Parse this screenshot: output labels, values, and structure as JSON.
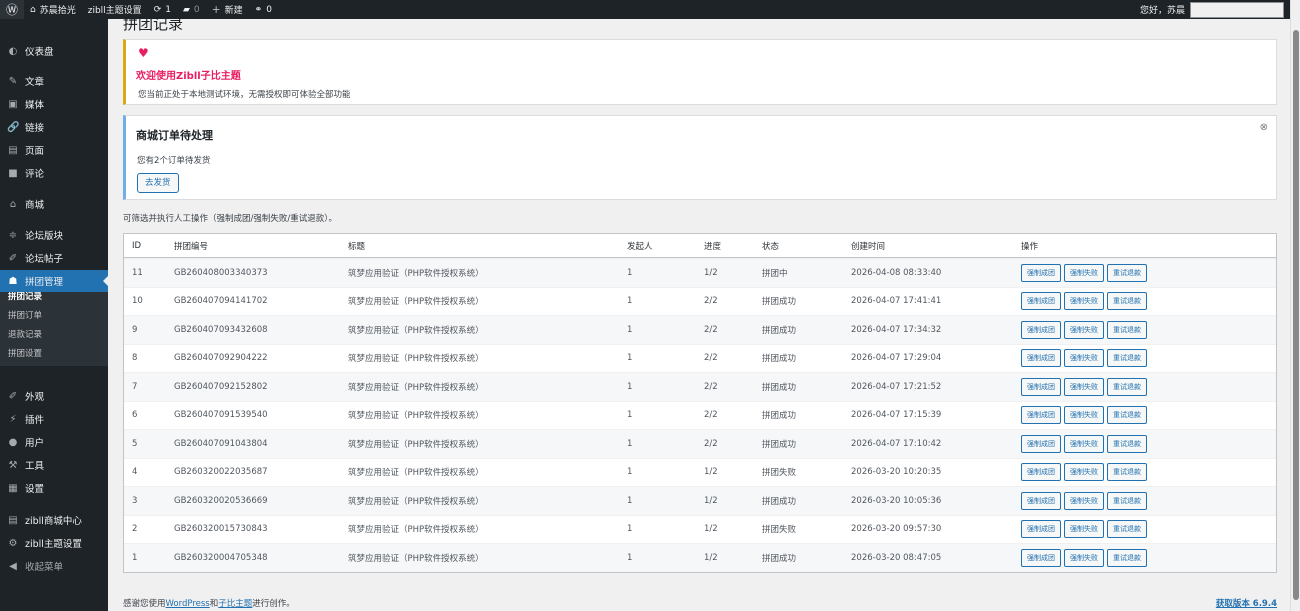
{
  "adminbar": {
    "site": "苏晨拾光",
    "theme_settings": "zibll主题设置",
    "updates": "1",
    "comments": "0",
    "new": "新建",
    "links": "0",
    "greeting": "您好，苏晨"
  },
  "sidebar": {
    "items": [
      {
        "label": "仪表盘",
        "icon": "dashboard-icon",
        "glyph": "◐"
      },
      {
        "label": "文章",
        "icon": "pin-icon",
        "glyph": "✎"
      },
      {
        "label": "媒体",
        "icon": "media-icon",
        "glyph": "▣"
      },
      {
        "label": "链接",
        "icon": "link-icon",
        "glyph": "🔗"
      },
      {
        "label": "页面",
        "icon": "page-icon",
        "glyph": "▤"
      },
      {
        "label": "评论",
        "icon": "comment-icon",
        "glyph": "■"
      },
      {
        "label": "商城",
        "icon": "store-icon",
        "glyph": "⌂"
      },
      {
        "label": "论坛版块",
        "icon": "forum-icon",
        "glyph": "≑"
      },
      {
        "label": "论坛帖子",
        "icon": "posts-icon",
        "glyph": "✐"
      },
      {
        "label": "拼团管理",
        "icon": "group-icon",
        "glyph": "☗"
      },
      {
        "label": "外观",
        "icon": "appearance-icon",
        "glyph": "✐"
      },
      {
        "label": "插件",
        "icon": "plugin-icon",
        "glyph": "⚡"
      },
      {
        "label": "用户",
        "icon": "user-icon",
        "glyph": "●"
      },
      {
        "label": "工具",
        "icon": "tools-icon",
        "glyph": "⚒"
      },
      {
        "label": "设置",
        "icon": "settings-icon",
        "glyph": "▦"
      },
      {
        "label": "zibll商城中心",
        "icon": "cart-icon",
        "glyph": "▤"
      },
      {
        "label": "zibll主题设置",
        "icon": "gear-icon",
        "glyph": "⚙"
      },
      {
        "label": "收起菜单",
        "icon": "collapse-icon",
        "glyph": "◀"
      }
    ],
    "submenu": [
      "拼团记录",
      "拼团订单",
      "退款记录",
      "拼团设置"
    ]
  },
  "page": {
    "title": "拼团记录"
  },
  "notice1": {
    "title": "欢迎使用Zibll子比主题",
    "desc": "您当前正处于本地测试环境，无需授权即可体验全部功能"
  },
  "notice2": {
    "title": "商城订单待处理",
    "desc": "您有2个订单待发货",
    "button": "去发货"
  },
  "hint": "可筛选并执行人工操作（强制成团/强制失败/重试退款）。",
  "table": {
    "headers": [
      "ID",
      "拼团编号",
      "标题",
      "发起人",
      "进度",
      "状态",
      "创建时间",
      "操作"
    ],
    "actions": [
      "强制成团",
      "强制失败",
      "重试退款"
    ],
    "rows": [
      [
        "11",
        "GB260408003340373",
        "筑梦应用验证（PHP软件授权系统）",
        "1",
        "1/2",
        "拼团中",
        "2026-04-08 08:33:40"
      ],
      [
        "10",
        "GB260407094141702",
        "筑梦应用验证（PHP软件授权系统）",
        "1",
        "2/2",
        "拼团成功",
        "2026-04-07 17:41:41"
      ],
      [
        "9",
        "GB260407093432608",
        "筑梦应用验证（PHP软件授权系统）",
        "1",
        "2/2",
        "拼团成功",
        "2026-04-07 17:34:32"
      ],
      [
        "8",
        "GB260407092904222",
        "筑梦应用验证（PHP软件授权系统）",
        "1",
        "2/2",
        "拼团成功",
        "2026-04-07 17:29:04"
      ],
      [
        "7",
        "GB260407092152802",
        "筑梦应用验证（PHP软件授权系统）",
        "1",
        "2/2",
        "拼团成功",
        "2026-04-07 17:21:52"
      ],
      [
        "6",
        "GB260407091539540",
        "筑梦应用验证（PHP软件授权系统）",
        "1",
        "2/2",
        "拼团成功",
        "2026-04-07 17:15:39"
      ],
      [
        "5",
        "GB260407091043804",
        "筑梦应用验证（PHP软件授权系统）",
        "1",
        "2/2",
        "拼团成功",
        "2026-04-07 17:10:42"
      ],
      [
        "4",
        "GB260320022035687",
        "筑梦应用验证（PHP软件授权系统）",
        "1",
        "1/2",
        "拼团失败",
        "2026-03-20 10:20:35"
      ],
      [
        "3",
        "GB260320020536669",
        "筑梦应用验证（PHP软件授权系统）",
        "1",
        "1/2",
        "拼团成功",
        "2026-03-20 10:05:36"
      ],
      [
        "2",
        "GB260320015730843",
        "筑梦应用验证（PHP软件授权系统）",
        "1",
        "1/2",
        "拼团失败",
        "2026-03-20 09:57:30"
      ],
      [
        "1",
        "GB260320004705348",
        "筑梦应用验证（PHP软件授权系统）",
        "1",
        "1/2",
        "拼团成功",
        "2026-03-20 08:47:05"
      ]
    ]
  },
  "footer": {
    "pre": "感谢您使用",
    "wp": "WordPress",
    "and": "和",
    "zibll": "子比主题",
    "post": "进行创作。",
    "version": "获取版本 6.9.4"
  }
}
